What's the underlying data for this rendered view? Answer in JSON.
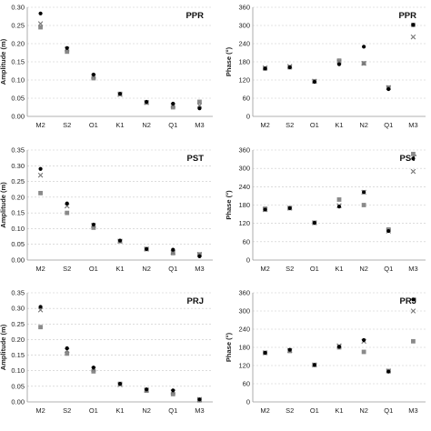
{
  "series_styles": {
    "dot": {
      "shape": "circle",
      "color": "#000000"
    },
    "cross": {
      "shape": "x",
      "color": "#777777"
    },
    "square": {
      "shape": "square",
      "color": "#8a8a8a"
    }
  },
  "chart_data": [
    {
      "type": "scatter",
      "station": "PPR",
      "title": "PPR",
      "ylabel": "Amplitude (m)",
      "categories": [
        "M2",
        "S2",
        "O1",
        "K1",
        "N2",
        "Q1",
        "M3"
      ],
      "ylim": [
        0,
        0.3
      ],
      "yticks": [
        "0.00",
        "0.05",
        "0.10",
        "0.15",
        "0.20",
        "0.25",
        "0.30"
      ],
      "grid": true,
      "series": [
        {
          "style": "dot",
          "values": [
            0.283,
            0.188,
            0.115,
            0.062,
            0.04,
            0.035,
            0.022
          ]
        },
        {
          "style": "cross",
          "values": [
            0.255,
            0.185,
            0.11,
            0.06,
            0.038,
            0.03,
            0.03
          ]
        },
        {
          "style": "square",
          "values": [
            0.245,
            0.178,
            0.105,
            0.062,
            0.038,
            0.025,
            0.04
          ]
        }
      ]
    },
    {
      "type": "scatter",
      "station": "PPR",
      "title": "PPR",
      "ylabel": "Phase (°)",
      "categories": [
        "M2",
        "S2",
        "O1",
        "K1",
        "N2",
        "Q1",
        "M3"
      ],
      "ylim": [
        0,
        360
      ],
      "yticks": [
        "0",
        "60",
        "120",
        "180",
        "240",
        "300",
        "360"
      ],
      "grid": true,
      "series": [
        {
          "style": "dot",
          "values": [
            158,
            162,
            114,
            172,
            230,
            90,
            302
          ]
        },
        {
          "style": "cross",
          "values": [
            160,
            165,
            116,
            180,
            175,
            95,
            262
          ]
        },
        {
          "style": "square",
          "values": [
            158,
            162,
            116,
            184,
            175,
            95,
            302
          ]
        }
      ]
    },
    {
      "type": "scatter",
      "station": "PST",
      "title": "PST",
      "ylabel": "Amplitude (m)",
      "categories": [
        "M2",
        "S2",
        "O1",
        "K1",
        "N2",
        "Q1",
        "M3"
      ],
      "ylim": [
        0,
        0.35
      ],
      "yticks": [
        "0.00",
        "0.05",
        "0.10",
        "0.15",
        "0.20",
        "0.25",
        "0.30",
        "0.35"
      ],
      "grid": true,
      "series": [
        {
          "style": "dot",
          "values": [
            0.29,
            0.18,
            0.113,
            0.062,
            0.035,
            0.033,
            0.012
          ]
        },
        {
          "style": "cross",
          "values": [
            0.27,
            0.172,
            0.11,
            0.06,
            0.035,
            0.025,
            0.018
          ]
        },
        {
          "style": "square",
          "values": [
            0.213,
            0.15,
            0.103,
            0.06,
            0.035,
            0.022,
            0.018
          ]
        }
      ]
    },
    {
      "type": "scatter",
      "station": "PST",
      "title": "PST",
      "ylabel": "Phase (°)",
      "categories": [
        "M2",
        "S2",
        "O1",
        "K1",
        "N2",
        "Q1",
        "M3"
      ],
      "ylim": [
        0,
        360
      ],
      "yticks": [
        "0",
        "60",
        "120",
        "180",
        "240",
        "300",
        "360"
      ],
      "grid": true,
      "series": [
        {
          "style": "dot",
          "values": [
            165,
            170,
            122,
            175,
            222,
            95,
            332
          ]
        },
        {
          "style": "cross",
          "values": [
            165,
            170,
            122,
            178,
            222,
            95,
            290
          ]
        },
        {
          "style": "square",
          "values": [
            168,
            170,
            122,
            198,
            180,
            100,
            347
          ]
        }
      ]
    },
    {
      "type": "scatter",
      "station": "PRJ",
      "title": "PRJ",
      "ylabel": "Amplitude (m)",
      "categories": [
        "M2",
        "S2",
        "O1",
        "K1",
        "N2",
        "Q1",
        "M3"
      ],
      "ylim": [
        0,
        0.35
      ],
      "yticks": [
        "0.00",
        "0.05",
        "0.10",
        "0.15",
        "0.20",
        "0.25",
        "0.30",
        "0.35"
      ],
      "grid": true,
      "series": [
        {
          "style": "dot",
          "values": [
            0.305,
            0.172,
            0.11,
            0.058,
            0.04,
            0.037,
            0.008
          ]
        },
        {
          "style": "cross",
          "values": [
            0.295,
            0.165,
            0.105,
            0.055,
            0.038,
            0.032,
            0.008
          ]
        },
        {
          "style": "square",
          "values": [
            0.24,
            0.155,
            0.098,
            0.058,
            0.036,
            0.025,
            0.005
          ]
        }
      ]
    },
    {
      "type": "scatter",
      "station": "PRJ",
      "title": "PRJ",
      "ylabel": "Phase (°)",
      "categories": [
        "M2",
        "S2",
        "O1",
        "K1",
        "N2",
        "Q1",
        "M3"
      ],
      "ylim": [
        0,
        360
      ],
      "yticks": [
        "0",
        "60",
        "120",
        "180",
        "240",
        "300",
        "360"
      ],
      "grid": true,
      "series": [
        {
          "style": "dot",
          "values": [
            162,
            172,
            122,
            182,
            204,
            100,
            338
          ]
        },
        {
          "style": "cross",
          "values": [
            162,
            170,
            122,
            185,
            200,
            102,
            300
          ]
        },
        {
          "style": "square",
          "values": [
            162,
            168,
            122,
            180,
            165,
            102,
            200
          ]
        }
      ]
    }
  ]
}
